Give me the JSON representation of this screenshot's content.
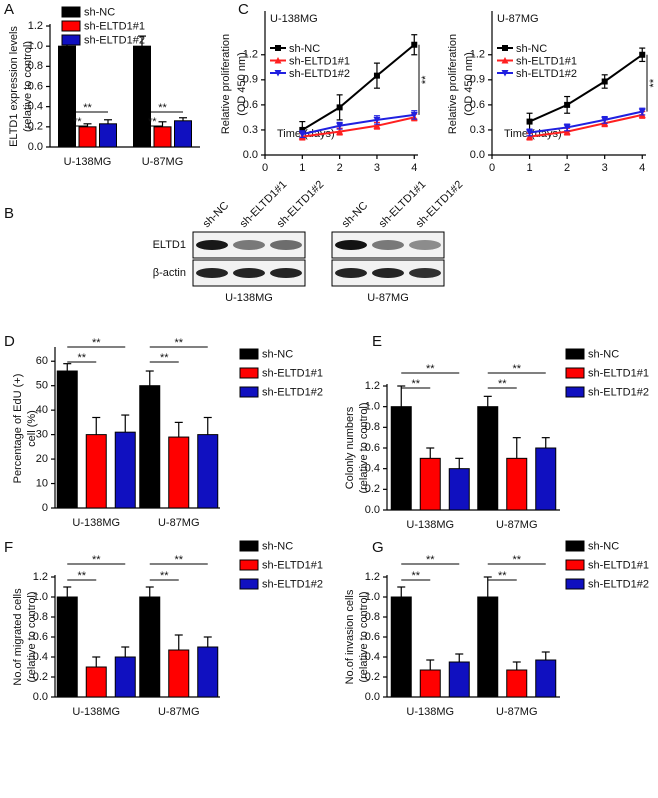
{
  "chart_data": [
    {
      "type": "bar",
      "panel": "A",
      "ylabel": [
        "ELTD1 expression levels",
        "(relative to control)"
      ],
      "categories": [
        "U-138MG",
        "U-87MG"
      ],
      "series": [
        {
          "name": "sh-NC",
          "color": "#000000",
          "values": [
            1.0,
            1.0
          ],
          "errors": [
            0.1,
            0.1
          ]
        },
        {
          "name": "sh-ELTD1#1",
          "color": "#ff0000",
          "values": [
            0.2,
            0.2
          ],
          "errors": [
            0.03,
            0.05
          ]
        },
        {
          "name": "sh-ELTD1#2",
          "color": "#1010c0",
          "values": [
            0.23,
            0.26
          ],
          "errors": [
            0.04,
            0.03
          ]
        }
      ],
      "ylim": [
        0,
        1.2
      ],
      "yticks": [
        {
          "value": 0,
          "label": "0.0"
        },
        0.2,
        0.4,
        0.6,
        0.8,
        {
          "value": 1,
          "label": "1.0"
        },
        1.2
      ],
      "significance": [
        "**",
        "**",
        "**",
        "**"
      ]
    },
    {
      "type": "line",
      "panel": "C",
      "title": "U-138MG",
      "ylabel": [
        "Relative proliferation",
        "(OD 450 nm)"
      ],
      "xlabel": "Time (days)",
      "x": [
        1,
        2,
        3,
        4
      ],
      "series": [
        {
          "name": "sh-NC",
          "color": "#000000",
          "values": [
            0.3,
            0.57,
            0.95,
            1.32
          ],
          "errors": [
            0.1,
            0.15,
            0.15,
            0.12
          ]
        },
        {
          "name": "sh-ELTD1#1",
          "color": "#ff2020",
          "values": [
            0.22,
            0.28,
            0.35,
            0.45
          ],
          "errors": [
            0.04,
            0.04,
            0.04,
            0.04
          ]
        },
        {
          "name": "sh-ELTD1#2",
          "color": "#2020e0",
          "values": [
            0.25,
            0.35,
            0.42,
            0.48
          ],
          "errors": [
            0.04,
            0.04,
            0.05,
            0.05
          ]
        }
      ],
      "xlim": [
        0,
        4.1
      ],
      "xticks": [
        0,
        1,
        2,
        3,
        4
      ],
      "ylim": [
        0,
        1.7
      ],
      "yticks": [
        {
          "value": 0,
          "label": "0.0"
        },
        0.3,
        0.6,
        0.9,
        1.2
      ],
      "significance": [
        "**"
      ]
    },
    {
      "type": "line",
      "panel": null,
      "title": "U-87MG",
      "ylabel": [
        "Relative proliferation",
        "(OD 450 nm)"
      ],
      "xlabel": "Time (days)",
      "x": [
        1,
        2,
        3,
        4
      ],
      "series": [
        {
          "name": "sh-NC",
          "color": "#000000",
          "values": [
            0.4,
            0.6,
            0.88,
            1.2
          ],
          "errors": [
            0.1,
            0.1,
            0.08,
            0.08
          ]
        },
        {
          "name": "sh-ELTD1#1",
          "color": "#ff2020",
          "values": [
            0.22,
            0.28,
            0.38,
            0.48
          ],
          "errors": [
            0.04,
            0.04,
            0.04,
            0.04
          ]
        },
        {
          "name": "sh-ELTD1#2",
          "color": "#2020e0",
          "values": [
            0.27,
            0.33,
            0.42,
            0.52
          ],
          "errors": [
            0.04,
            0.04,
            0.04,
            0.04
          ]
        }
      ],
      "xlim": [
        0,
        4.1
      ],
      "xticks": [
        0,
        1,
        2,
        3,
        4
      ],
      "ylim": [
        0,
        1.7
      ],
      "yticks": [
        {
          "value": 0,
          "label": "0.0"
        },
        0.3,
        0.6,
        0.9,
        1.2
      ],
      "significance": [
        "**"
      ]
    },
    {
      "type": "bar",
      "panel": "D",
      "ylabel": [
        "Percentage of EdU (+)",
        "cell (%)"
      ],
      "categories": [
        "U-138MG",
        "U-87MG"
      ],
      "series": [
        {
          "name": "sh-NC",
          "color": "#000000",
          "values": [
            56,
            50
          ],
          "errors": [
            3,
            6
          ]
        },
        {
          "name": "sh-ELTD1#1",
          "color": "#ff0000",
          "values": [
            30,
            29
          ],
          "errors": [
            7,
            6
          ]
        },
        {
          "name": "sh-ELTD1#2",
          "color": "#1010c0",
          "values": [
            31,
            30
          ],
          "errors": [
            7,
            7
          ]
        }
      ],
      "ylim": [
        0,
        65
      ],
      "yticks": [
        0,
        10,
        20,
        30,
        40,
        50,
        60
      ],
      "significance": [
        "**",
        "**",
        "**",
        "**"
      ]
    },
    {
      "type": "bar",
      "panel": "E",
      "ylabel": [
        "Colonly numbers",
        "(relative to control)"
      ],
      "categories": [
        "U-138MG",
        "U-87MG"
      ],
      "series": [
        {
          "name": "sh-NC",
          "color": "#000000",
          "values": [
            1.0,
            1.0
          ],
          "errors": [
            0.2,
            0.1
          ]
        },
        {
          "name": "sh-ELTD1#1",
          "color": "#ff0000",
          "values": [
            0.5,
            0.5
          ],
          "errors": [
            0.1,
            0.2
          ]
        },
        {
          "name": "sh-ELTD1#2",
          "color": "#1010c0",
          "values": [
            0.4,
            0.6
          ],
          "errors": [
            0.1,
            0.1
          ]
        }
      ],
      "ylim": [
        0,
        1.2
      ],
      "yticks": [
        {
          "value": 0,
          "label": "0.0"
        },
        0.2,
        0.4,
        0.6,
        0.8,
        {
          "value": 1,
          "label": "1.0"
        },
        1.2
      ],
      "significance": [
        "**",
        "**",
        "**",
        "**"
      ]
    },
    {
      "type": "bar",
      "panel": "F",
      "ylabel": [
        "No.of migrated cells",
        "(relative to control)"
      ],
      "categories": [
        "U-138MG",
        "U-87MG"
      ],
      "series": [
        {
          "name": "sh-NC",
          "color": "#000000",
          "values": [
            1.0,
            1.0
          ],
          "errors": [
            0.1,
            0.1
          ]
        },
        {
          "name": "sh-ELTD1#1",
          "color": "#ff0000",
          "values": [
            0.3,
            0.47
          ],
          "errors": [
            0.1,
            0.15
          ]
        },
        {
          "name": "sh-ELTD1#2",
          "color": "#1010c0",
          "values": [
            0.4,
            0.5
          ],
          "errors": [
            0.1,
            0.1
          ]
        }
      ],
      "ylim": [
        0,
        1.2
      ],
      "yticks": [
        {
          "value": 0,
          "label": "0.0"
        },
        0.2,
        0.4,
        0.6,
        0.8,
        {
          "value": 1,
          "label": "1.0"
        },
        1.2
      ],
      "significance": [
        "**",
        "**",
        "**",
        "**"
      ]
    },
    {
      "type": "bar",
      "panel": "G",
      "ylabel": [
        "No.of invasion cells",
        "(relative to control)"
      ],
      "categories": [
        "U-138MG",
        "U-87MG"
      ],
      "series": [
        {
          "name": "sh-NC",
          "color": "#000000",
          "values": [
            1.0,
            1.0
          ],
          "errors": [
            0.1,
            0.2
          ]
        },
        {
          "name": "sh-ELTD1#1",
          "color": "#ff0000",
          "values": [
            0.27,
            0.27
          ],
          "errors": [
            0.1,
            0.08
          ]
        },
        {
          "name": "sh-ELTD1#2",
          "color": "#1010c0",
          "values": [
            0.35,
            0.37
          ],
          "errors": [
            0.08,
            0.08
          ]
        }
      ],
      "ylim": [
        0,
        1.2
      ],
      "yticks": [
        {
          "value": 0,
          "label": "0.0"
        },
        0.2,
        0.4,
        0.6,
        0.8,
        {
          "value": 1,
          "label": "1.0"
        },
        1.2
      ],
      "significance": [
        "**",
        "**",
        "**",
        "**"
      ]
    }
  ],
  "blot": {
    "panel": "B",
    "lanes": [
      "sh-NC",
      "sh-ELTD1#1",
      "sh-ELTD1#2"
    ],
    "rows": [
      "ELTD1",
      "β-actin"
    ],
    "groups": [
      "U-138MG",
      "U-87MG"
    ]
  }
}
